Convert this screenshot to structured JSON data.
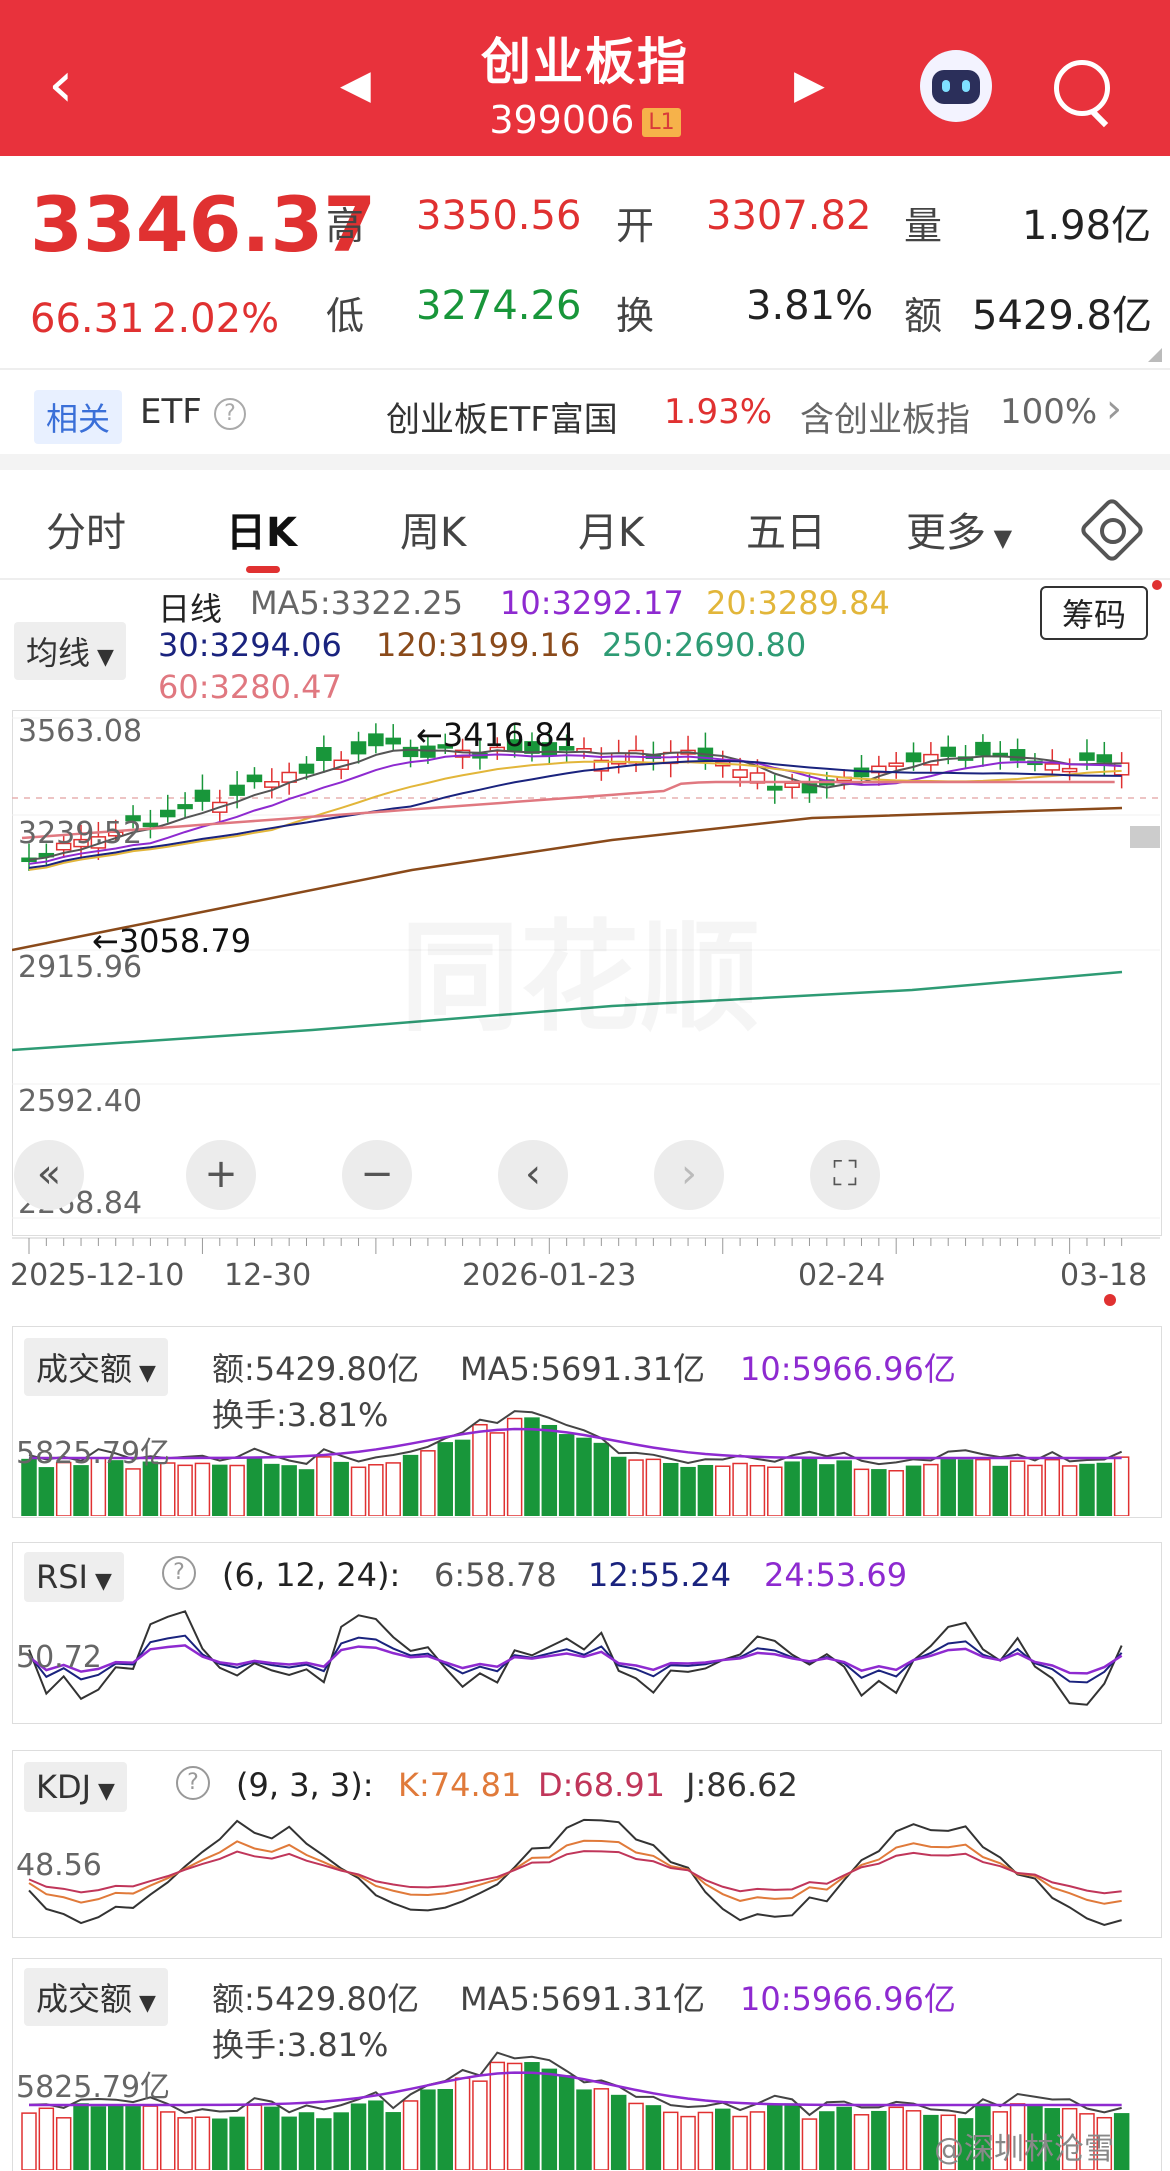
{
  "header": {
    "title": "创业板指",
    "code": "399006",
    "badge": "L1"
  },
  "quote": {
    "price": "3346.37",
    "change": "66.31",
    "change_pct": "2.02%",
    "high_label": "高",
    "high": "3350.56",
    "open_label": "开",
    "open": "3307.82",
    "vol_label": "量",
    "vol": "1.98亿",
    "low_label": "低",
    "low": "3274.26",
    "turn_label": "换",
    "turn": "3.81%",
    "amt_label": "额",
    "amt": "5429.8亿"
  },
  "related": {
    "tag": "相关",
    "etf": "ETF",
    "fund": "创业板ETF富国",
    "fund_pct": "1.93%",
    "contains": "含创业板指",
    "contains_pct": "100%"
  },
  "tabs": [
    "分时",
    "日K",
    "周K",
    "月K",
    "五日",
    "更多"
  ],
  "active_tab": "日K",
  "ma": {
    "pill": "均线",
    "name": "日线",
    "ma5": "MA5:3322.25",
    "ma10": "10:3292.17",
    "ma20": "20:3289.84",
    "ma30": "30:3294.06",
    "ma120": "120:3199.16",
    "ma250": "250:2690.80",
    "ma60": "60:3280.47",
    "chip": "筹码"
  },
  "kline": {
    "y_labels": [
      "3563.08",
      "3239.52",
      "2915.96",
      "2592.40",
      "2268.84"
    ],
    "high_mark": "←3416.84",
    "low_mark": "←3058.79",
    "x_labels": [
      "2025-12-10",
      "12-30",
      "2026-01-23",
      "02-24",
      "03-18"
    ]
  },
  "volume": {
    "pill": "成交额",
    "amt": "额:5429.80亿",
    "ma5": "MA5:5691.31亿",
    "ma10": "10:5966.96亿",
    "turn": "换手:3.81%",
    "y_label": "5825.79亿"
  },
  "rsi": {
    "pill": "RSI",
    "params": "(6, 12, 24):",
    "v6": "6:58.78",
    "v12": "12:55.24",
    "v24": "24:53.69",
    "y_label": "50.72"
  },
  "kdj": {
    "pill": "KDJ",
    "params": "(9, 3, 3):",
    "k": "K:74.81",
    "d": "D:68.91",
    "j": "J:86.62",
    "y_label": "48.56"
  },
  "volume2": {
    "pill": "成交额",
    "amt": "额:5429.80亿",
    "ma5": "MA5:5691.31亿",
    "ma10": "10:5966.96亿",
    "turn": "换手:3.81%",
    "y_label": "5825.79亿"
  },
  "watermark": "@深圳林沧雪",
  "colors": {
    "up": "#e03131",
    "down": "#18963a",
    "header": "#e8323c"
  }
}
